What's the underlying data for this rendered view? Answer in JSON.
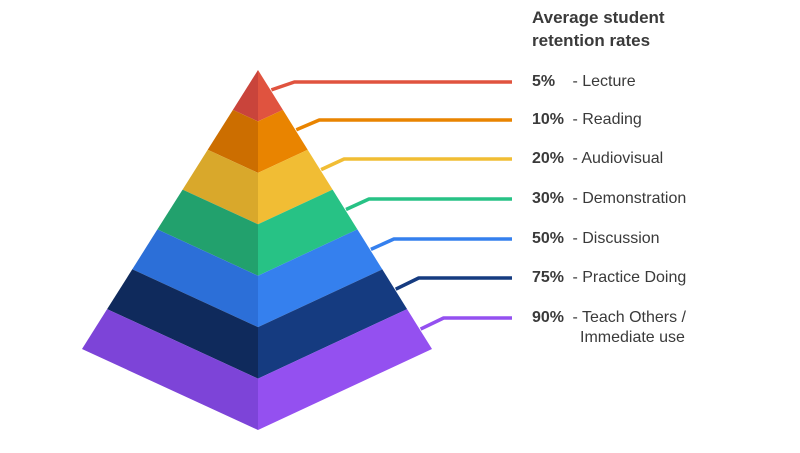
{
  "legend": {
    "title_line1": "Average student",
    "title_line2": "retention rates"
  },
  "levels": [
    {
      "percent": "5%",
      "label": "Lecture",
      "label2": "",
      "value": 5,
      "color_left": "#c9443b",
      "color_right": "#e0533f"
    },
    {
      "percent": "10%",
      "label": "Reading",
      "label2": "",
      "value": 10,
      "color_left": "#cc6e00",
      "color_right": "#e98400"
    },
    {
      "percent": "20%",
      "label": "Audiovisual",
      "label2": "",
      "value": 20,
      "color_left": "#d9a82b",
      "color_right": "#f1bd34"
    },
    {
      "percent": "30%",
      "label": "Demonstration",
      "label2": "",
      "value": 30,
      "color_left": "#22a16d",
      "color_right": "#27c285"
    },
    {
      "percent": "50%",
      "label": "Discussion",
      "label2": "",
      "value": 50,
      "color_left": "#2c6fd8",
      "color_right": "#3580ee"
    },
    {
      "percent": "75%",
      "label": "Practice Doing",
      "label2": "",
      "value": 75,
      "color_left": "#0f2a5c",
      "color_right": "#153b80"
    },
    {
      "percent": "90%",
      "label": "Teach Others /",
      "label2": "Immediate use",
      "value": 90,
      "color_left": "#7d44d8",
      "color_right": "#9450f0"
    }
  ],
  "dash": " - "
}
